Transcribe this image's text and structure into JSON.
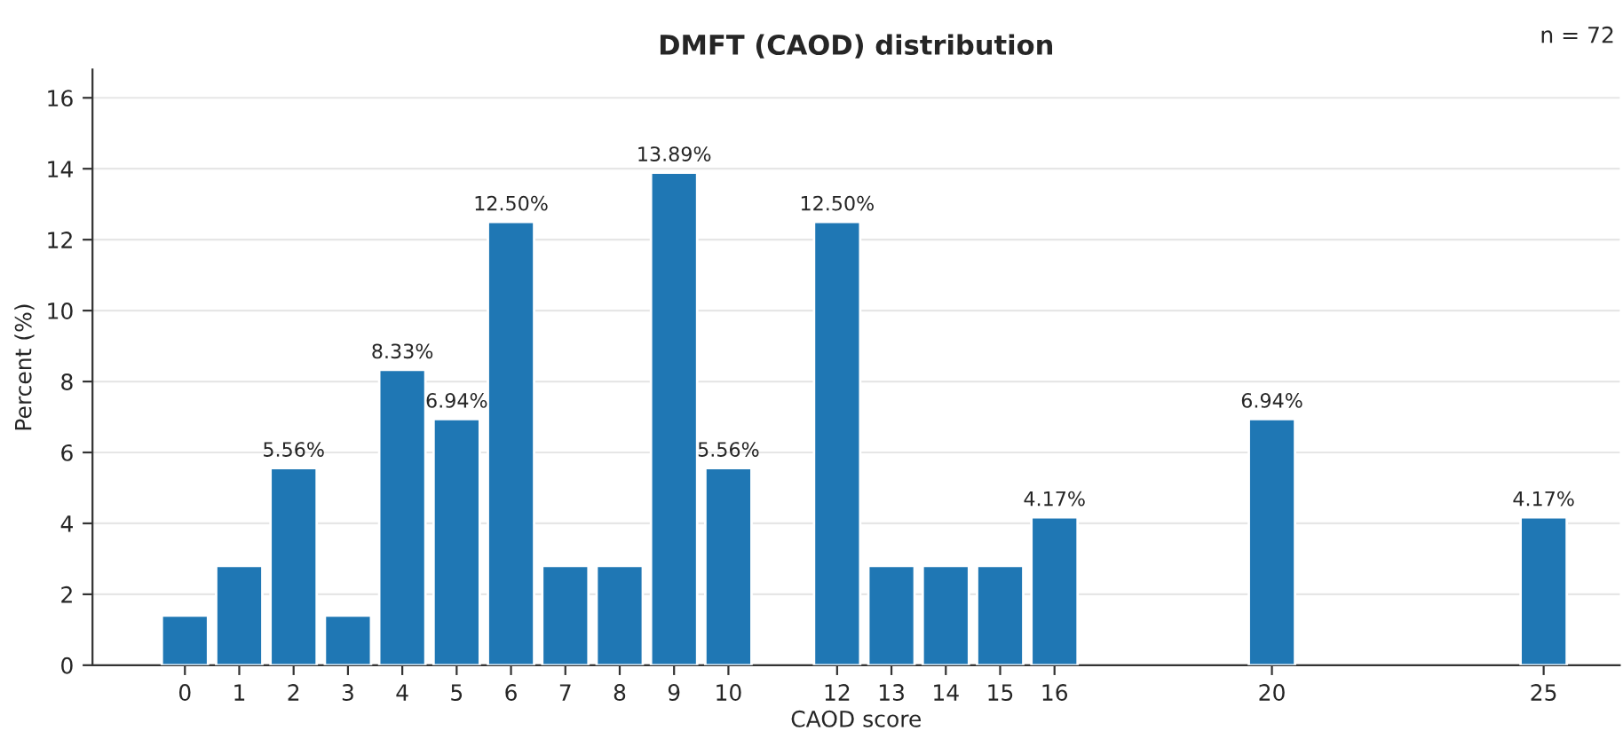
{
  "chart_data": {
    "type": "bar",
    "title": "DMFT (CAOD) distribution",
    "xlabel": "CAOD score",
    "ylabel": "Percent (%)",
    "x": [
      0,
      1,
      2,
      3,
      4,
      5,
      6,
      7,
      8,
      9,
      10,
      12,
      13,
      14,
      15,
      16,
      20,
      25
    ],
    "values": [
      1.4,
      2.8,
      5.56,
      1.4,
      8.33,
      6.94,
      12.5,
      2.8,
      2.8,
      13.89,
      5.56,
      12.5,
      2.8,
      2.8,
      2.8,
      4.17,
      6.94,
      4.17
    ],
    "value_labels": [
      null,
      null,
      "5.56%",
      null,
      "8.33%",
      "6.94%",
      "12.50%",
      null,
      null,
      "13.89%",
      "5.56%",
      "12.50%",
      null,
      null,
      null,
      "4.17%",
      "6.94%",
      "4.17%"
    ],
    "color": "#1f77b4",
    "xlim": [
      -1.7,
      26.4
    ],
    "xticks": [
      0,
      1,
      2,
      3,
      4,
      5,
      6,
      7,
      8,
      9,
      10,
      12,
      13,
      14,
      15,
      16,
      20,
      25
    ],
    "ylim": [
      0,
      16.8
    ],
    "yticks": [
      0,
      2,
      4,
      6,
      8,
      10,
      12,
      14,
      16
    ],
    "grid": "y",
    "legend": false,
    "annotations": [
      "n = 72"
    ]
  }
}
